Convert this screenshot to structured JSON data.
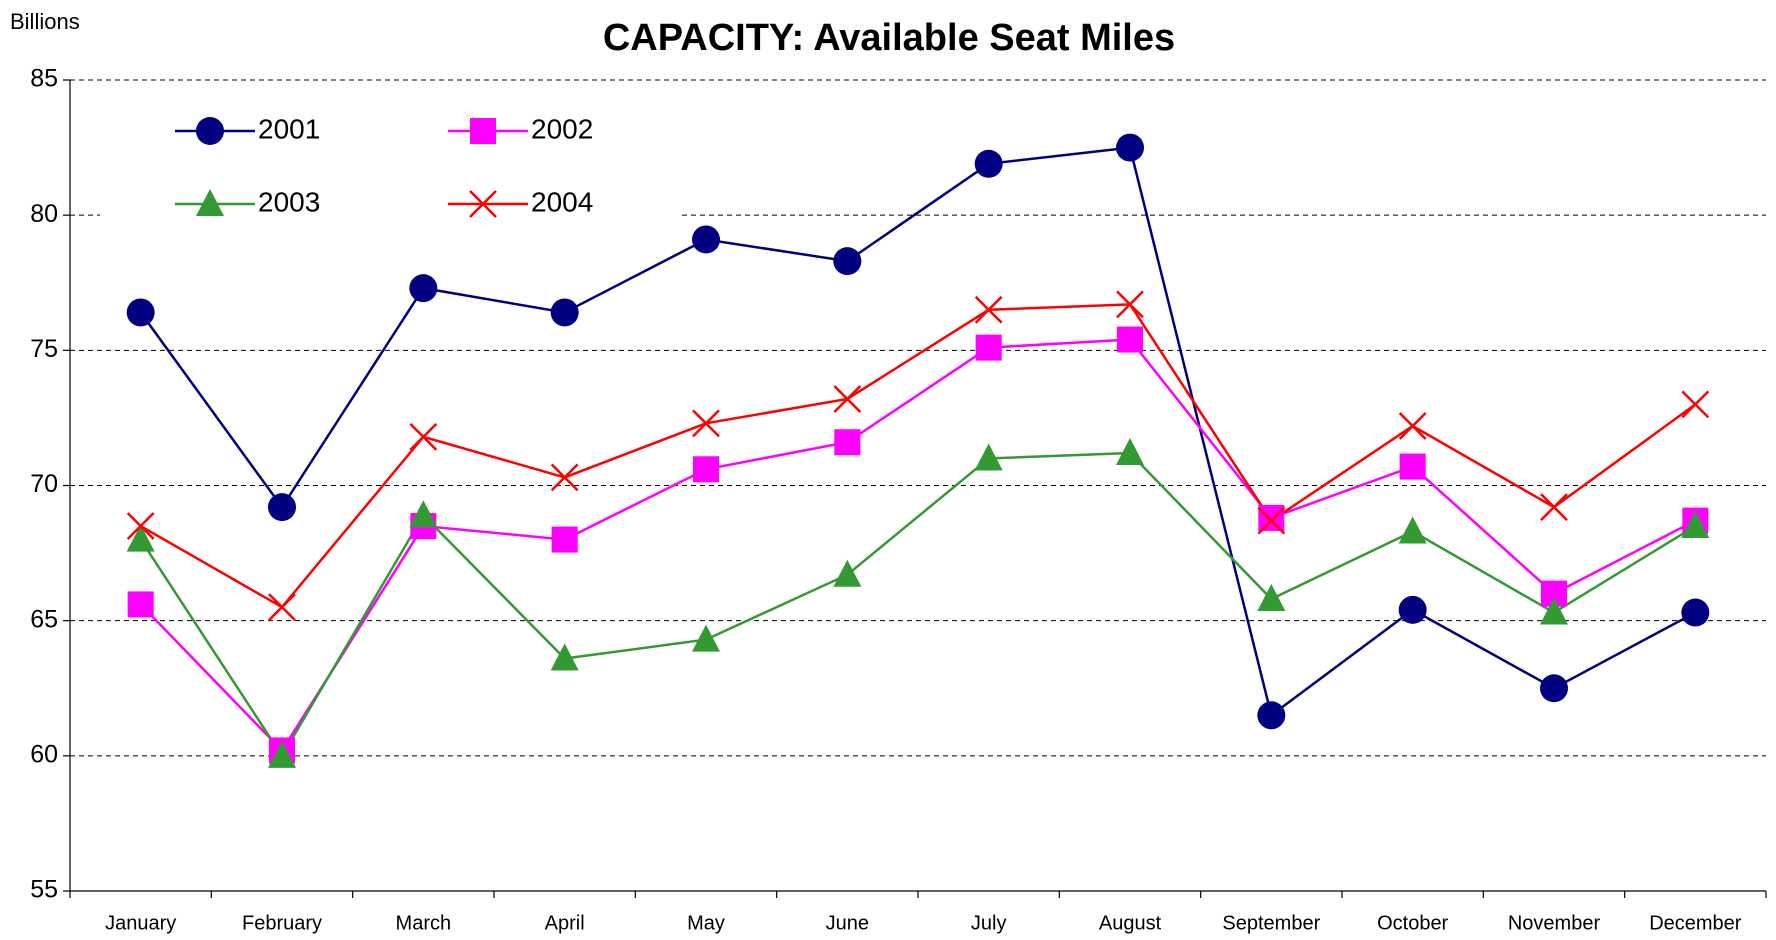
{
  "chart_data": {
    "type": "line",
    "title": "CAPACITY: Available Seat Miles",
    "y_label": "Billions",
    "categories": [
      "January",
      "February",
      "March",
      "April",
      "May",
      "June",
      "July",
      "August",
      "September",
      "October",
      "November",
      "December"
    ],
    "series": [
      {
        "name": "2001",
        "color": "#000080",
        "marker": "circle",
        "values": [
          76.4,
          69.2,
          77.3,
          76.4,
          79.1,
          78.3,
          81.9,
          82.5,
          61.5,
          65.4,
          62.5,
          65.3
        ]
      },
      {
        "name": "2002",
        "color": "#ff00ff",
        "marker": "square",
        "values": [
          65.6,
          60.2,
          68.5,
          68.0,
          70.6,
          71.6,
          75.1,
          75.4,
          68.8,
          70.7,
          66.0,
          68.7
        ]
      },
      {
        "name": "2003",
        "color": "#339933",
        "marker": "triangle",
        "values": [
          68.0,
          60.0,
          68.9,
          63.6,
          64.3,
          66.7,
          71.0,
          71.2,
          65.8,
          68.3,
          65.3,
          68.5
        ]
      },
      {
        "name": "2004",
        "color": "#ff0000",
        "marker": "x",
        "values": [
          68.5,
          65.5,
          71.8,
          70.3,
          72.3,
          73.2,
          76.5,
          76.7,
          68.7,
          72.2,
          69.2,
          73.0
        ]
      }
    ],
    "ylim": [
      55,
      85
    ],
    "yticks": [
      55,
      60,
      65,
      70,
      75,
      80,
      85
    ],
    "grid": true,
    "legend": "top-left"
  }
}
